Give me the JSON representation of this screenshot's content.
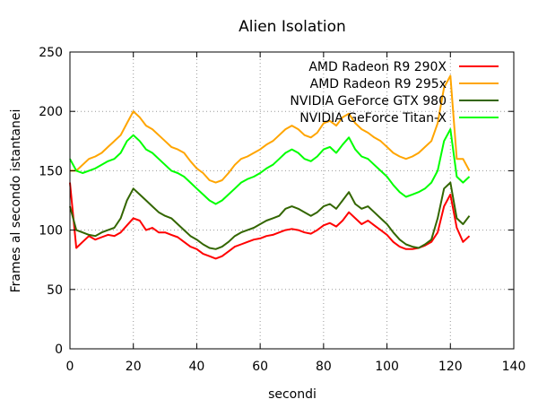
{
  "chart_data": {
    "type": "line",
    "title": "Alien Isolation",
    "xlabel": "secondi",
    "ylabel": "Frames al secondo istantanei",
    "xlim": [
      0,
      140
    ],
    "ylim": [
      0,
      250
    ],
    "xticks": [
      "0",
      "20",
      "40",
      "60",
      "80",
      "100",
      "120",
      "140"
    ],
    "yticks": [
      "0",
      "50",
      "100",
      "150",
      "200",
      "250"
    ],
    "grid": true,
    "legend_position": "top-right",
    "series": [
      {
        "name": "AMD Radeon R9 290X",
        "color": "#ff0000",
        "x": [
          0,
          2,
          4,
          6,
          8,
          10,
          12,
          14,
          16,
          18,
          20,
          22,
          24,
          26,
          28,
          30,
          32,
          34,
          36,
          38,
          40,
          42,
          44,
          46,
          48,
          50,
          52,
          54,
          56,
          58,
          60,
          62,
          64,
          66,
          68,
          70,
          72,
          74,
          76,
          78,
          80,
          82,
          84,
          86,
          88,
          90,
          92,
          94,
          96,
          98,
          100,
          102,
          104,
          106,
          108,
          110,
          112,
          114,
          116,
          118,
          120,
          122,
          124,
          126
        ],
        "y": [
          140,
          85,
          90,
          95,
          92,
          94,
          96,
          95,
          98,
          104,
          110,
          108,
          100,
          102,
          98,
          98,
          96,
          94,
          90,
          86,
          84,
          80,
          78,
          76,
          78,
          82,
          86,
          88,
          90,
          92,
          93,
          95,
          96,
          98,
          100,
          101,
          100,
          98,
          97,
          100,
          104,
          106,
          103,
          108,
          115,
          110,
          105,
          108,
          104,
          100,
          96,
          90,
          86,
          84,
          84,
          85,
          87,
          90,
          98,
          120,
          130,
          102,
          90,
          95
        ]
      },
      {
        "name": "AMD Radeon R9 295x",
        "color": "#ffa500",
        "x": [
          0,
          2,
          4,
          6,
          8,
          10,
          12,
          14,
          16,
          18,
          20,
          22,
          24,
          26,
          28,
          30,
          32,
          34,
          36,
          38,
          40,
          42,
          44,
          46,
          48,
          50,
          52,
          54,
          56,
          58,
          60,
          62,
          64,
          66,
          68,
          70,
          72,
          74,
          76,
          78,
          80,
          82,
          84,
          86,
          88,
          90,
          92,
          94,
          96,
          98,
          100,
          102,
          104,
          106,
          108,
          110,
          112,
          114,
          116,
          118,
          120,
          122,
          124,
          126
        ],
        "y": [
          150,
          150,
          155,
          160,
          162,
          165,
          170,
          175,
          180,
          190,
          200,
          195,
          188,
          185,
          180,
          175,
          170,
          168,
          165,
          158,
          152,
          148,
          142,
          140,
          142,
          148,
          155,
          160,
          162,
          165,
          168,
          172,
          175,
          180,
          185,
          188,
          185,
          180,
          178,
          182,
          190,
          192,
          188,
          195,
          198,
          190,
          185,
          182,
          178,
          175,
          170,
          165,
          162,
          160,
          162,
          165,
          170,
          175,
          190,
          220,
          230,
          160,
          160,
          150
        ]
      },
      {
        "name": "NVIDIA GeForce GTX 980",
        "color": "#336600",
        "x": [
          0,
          2,
          4,
          6,
          8,
          10,
          12,
          14,
          16,
          18,
          20,
          22,
          24,
          26,
          28,
          30,
          32,
          34,
          36,
          38,
          40,
          42,
          44,
          46,
          48,
          50,
          52,
          54,
          56,
          58,
          60,
          62,
          64,
          66,
          68,
          70,
          72,
          74,
          76,
          78,
          80,
          82,
          84,
          86,
          88,
          90,
          92,
          94,
          96,
          98,
          100,
          102,
          104,
          106,
          108,
          110,
          112,
          114,
          116,
          118,
          120,
          122,
          124,
          126
        ],
        "y": [
          120,
          100,
          98,
          96,
          95,
          98,
          100,
          102,
          110,
          125,
          135,
          130,
          125,
          120,
          115,
          112,
          110,
          105,
          100,
          95,
          92,
          88,
          85,
          84,
          86,
          90,
          95,
          98,
          100,
          102,
          105,
          108,
          110,
          112,
          118,
          120,
          118,
          115,
          112,
          115,
          120,
          122,
          118,
          125,
          132,
          122,
          118,
          120,
          115,
          110,
          105,
          98,
          92,
          88,
          86,
          85,
          88,
          92,
          110,
          135,
          140,
          110,
          105,
          112
        ]
      },
      {
        "name": "NVIDIA GeForce Titan-X",
        "color": "#00ff00",
        "x": [
          0,
          2,
          4,
          6,
          8,
          10,
          12,
          14,
          16,
          18,
          20,
          22,
          24,
          26,
          28,
          30,
          32,
          34,
          36,
          38,
          40,
          42,
          44,
          46,
          48,
          50,
          52,
          54,
          56,
          58,
          60,
          62,
          64,
          66,
          68,
          70,
          72,
          74,
          76,
          78,
          80,
          82,
          84,
          86,
          88,
          90,
          92,
          94,
          96,
          98,
          100,
          102,
          104,
          106,
          108,
          110,
          112,
          114,
          116,
          118,
          120,
          122,
          124,
          126
        ],
        "y": [
          160,
          150,
          148,
          150,
          152,
          155,
          158,
          160,
          165,
          175,
          180,
          175,
          168,
          165,
          160,
          155,
          150,
          148,
          145,
          140,
          135,
          130,
          125,
          122,
          125,
          130,
          135,
          140,
          143,
          145,
          148,
          152,
          155,
          160,
          165,
          168,
          165,
          160,
          158,
          162,
          168,
          170,
          165,
          172,
          178,
          168,
          162,
          160,
          155,
          150,
          145,
          138,
          132,
          128,
          130,
          132,
          135,
          140,
          150,
          175,
          185,
          145,
          140,
          145
        ]
      }
    ]
  }
}
